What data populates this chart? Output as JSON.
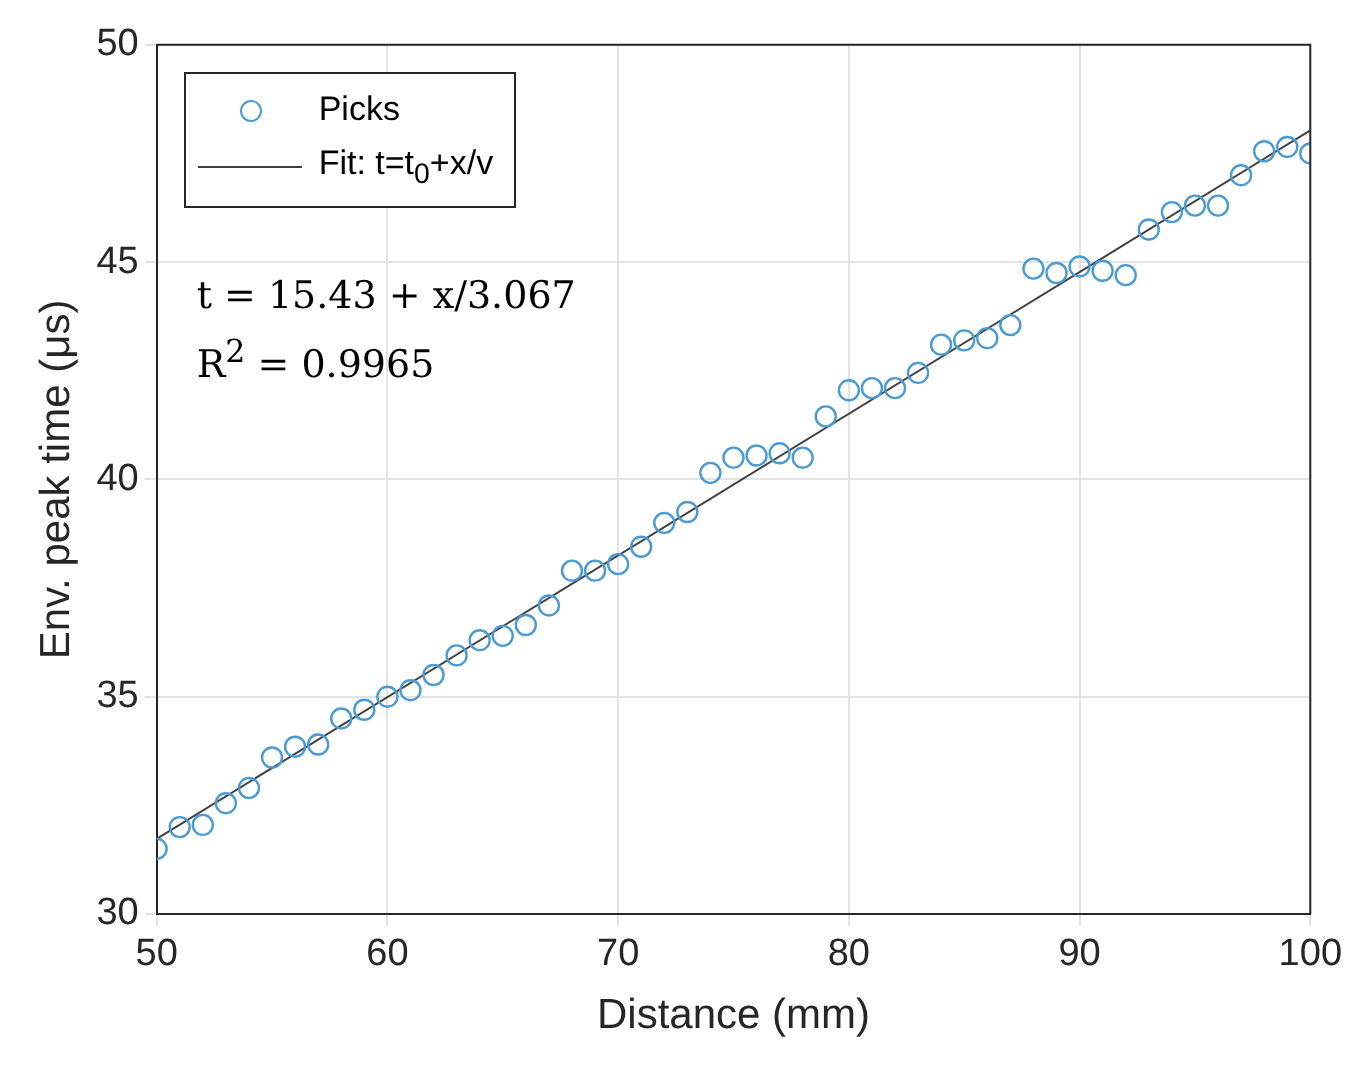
{
  "chart_data": {
    "type": "scatter",
    "xlabel": "Distance (mm)",
    "ylabel": "Env. peak time (μs)",
    "xlim": [
      50,
      100
    ],
    "xticks": [
      50,
      60,
      70,
      80,
      90,
      100
    ],
    "ylim": [
      30,
      50
    ],
    "yticks": [
      30,
      35,
      40,
      45,
      50
    ],
    "grid": true,
    "legend": "top left",
    "marker": "circle",
    "x": [
      50,
      51,
      52,
      53,
      54,
      55,
      56,
      57,
      58,
      59,
      60,
      61,
      62,
      63,
      64,
      65,
      66,
      67,
      68,
      69,
      70,
      71,
      72,
      73,
      74,
      75,
      76,
      77,
      78,
      79,
      80,
      81,
      82,
      83,
      84,
      85,
      86,
      87,
      88,
      89,
      90,
      91,
      92,
      93,
      94,
      95,
      96,
      97,
      98,
      99,
      100
    ],
    "series": [
      {
        "name": "Picks",
        "color": "#4a9ad6",
        "values": [
          31.5,
          32.0,
          32.05,
          32.55,
          32.9,
          33.6,
          33.85,
          33.9,
          34.5,
          34.7,
          35.0,
          35.15,
          35.5,
          35.95,
          36.3,
          36.4,
          36.65,
          37.1,
          37.9,
          37.9,
          38.05,
          38.45,
          39.0,
          39.25,
          40.15,
          40.5,
          40.55,
          40.6,
          40.5,
          41.45,
          42.05,
          42.1,
          42.1,
          42.45,
          43.1,
          43.2,
          43.25,
          43.55,
          44.85,
          44.75,
          44.9,
          44.8,
          44.7,
          45.75,
          46.15,
          46.3,
          46.3,
          47.0,
          47.55,
          47.65,
          47.5
        ]
      },
      {
        "name": "Fit: t=t$_{0}$+x/v",
        "type": "line",
        "color": "#404040",
        "line_style": "solid",
        "marker": "none",
        "x": [
          50,
          100
        ],
        "values": [
          31.73,
          48.03
        ]
      }
    ],
    "annotations": [
      "t = 15.43 + x/3.067",
      "R$^{2}$ = 0.9965"
    ]
  }
}
